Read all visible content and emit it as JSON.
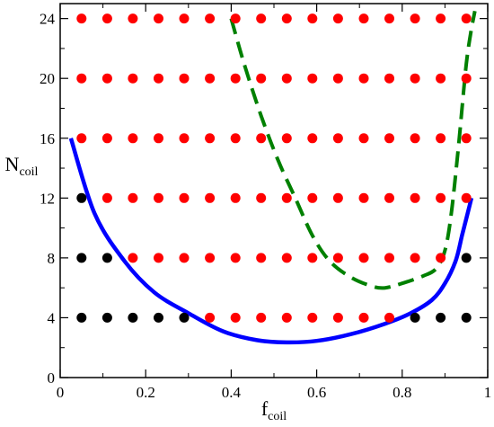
{
  "chart_data": {
    "type": "scatter",
    "xlabel": {
      "main": "f",
      "sub": "coil"
    },
    "ylabel": {
      "main": "N",
      "sub": "coil"
    },
    "xlim": [
      0,
      1
    ],
    "ylim": [
      0,
      25
    ],
    "xticks": [
      "0",
      "0.2",
      "0.4",
      "0.6",
      "0.8",
      "1"
    ],
    "xtick_values": [
      0,
      0.2,
      0.4,
      0.6,
      0.8,
      1
    ],
    "yticks": [
      "0",
      "4",
      "8",
      "12",
      "16",
      "20",
      "24"
    ],
    "ytick_values": [
      0,
      4,
      8,
      12,
      16,
      20,
      24
    ],
    "grid": false,
    "legend": "none",
    "colors": {
      "red": "#ff0000",
      "black": "#000000",
      "blue": "#0000ff",
      "green": "#008000"
    },
    "series": [
      {
        "color": "red",
        "points": [
          [
            0.05,
            24
          ],
          [
            0.11,
            24
          ],
          [
            0.17,
            24
          ],
          [
            0.23,
            24
          ],
          [
            0.29,
            24
          ],
          [
            0.35,
            24
          ],
          [
            0.41,
            24
          ],
          [
            0.47,
            24
          ],
          [
            0.53,
            24
          ],
          [
            0.59,
            24
          ],
          [
            0.65,
            24
          ],
          [
            0.71,
            24
          ],
          [
            0.77,
            24
          ],
          [
            0.83,
            24
          ],
          [
            0.89,
            24
          ],
          [
            0.95,
            24
          ],
          [
            0.05,
            20
          ],
          [
            0.11,
            20
          ],
          [
            0.17,
            20
          ],
          [
            0.23,
            20
          ],
          [
            0.29,
            20
          ],
          [
            0.35,
            20
          ],
          [
            0.41,
            20
          ],
          [
            0.47,
            20
          ],
          [
            0.53,
            20
          ],
          [
            0.59,
            20
          ],
          [
            0.65,
            20
          ],
          [
            0.71,
            20
          ],
          [
            0.77,
            20
          ],
          [
            0.83,
            20
          ],
          [
            0.89,
            20
          ],
          [
            0.95,
            20
          ],
          [
            0.05,
            16
          ],
          [
            0.11,
            16
          ],
          [
            0.17,
            16
          ],
          [
            0.23,
            16
          ],
          [
            0.29,
            16
          ],
          [
            0.35,
            16
          ],
          [
            0.41,
            16
          ],
          [
            0.47,
            16
          ],
          [
            0.53,
            16
          ],
          [
            0.59,
            16
          ],
          [
            0.65,
            16
          ],
          [
            0.71,
            16
          ],
          [
            0.77,
            16
          ],
          [
            0.83,
            16
          ],
          [
            0.89,
            16
          ],
          [
            0.95,
            16
          ],
          [
            0.11,
            12
          ],
          [
            0.17,
            12
          ],
          [
            0.23,
            12
          ],
          [
            0.29,
            12
          ],
          [
            0.35,
            12
          ],
          [
            0.41,
            12
          ],
          [
            0.47,
            12
          ],
          [
            0.53,
            12
          ],
          [
            0.59,
            12
          ],
          [
            0.65,
            12
          ],
          [
            0.71,
            12
          ],
          [
            0.77,
            12
          ],
          [
            0.83,
            12
          ],
          [
            0.89,
            12
          ],
          [
            0.95,
            12
          ],
          [
            0.17,
            8
          ],
          [
            0.23,
            8
          ],
          [
            0.29,
            8
          ],
          [
            0.35,
            8
          ],
          [
            0.41,
            8
          ],
          [
            0.47,
            8
          ],
          [
            0.53,
            8
          ],
          [
            0.59,
            8
          ],
          [
            0.65,
            8
          ],
          [
            0.71,
            8
          ],
          [
            0.77,
            8
          ],
          [
            0.83,
            8
          ],
          [
            0.89,
            8
          ],
          [
            0.35,
            4
          ],
          [
            0.41,
            4
          ],
          [
            0.47,
            4
          ],
          [
            0.53,
            4
          ],
          [
            0.59,
            4
          ],
          [
            0.65,
            4
          ],
          [
            0.71,
            4
          ],
          [
            0.77,
            4
          ]
        ]
      },
      {
        "color": "black",
        "points": [
          [
            0.05,
            12
          ],
          [
            0.05,
            8
          ],
          [
            0.11,
            8
          ],
          [
            0.95,
            8
          ],
          [
            0.05,
            4
          ],
          [
            0.11,
            4
          ],
          [
            0.17,
            4
          ],
          [
            0.23,
            4
          ],
          [
            0.29,
            4
          ],
          [
            0.83,
            4
          ],
          [
            0.89,
            4
          ],
          [
            0.95,
            4
          ]
        ]
      }
    ],
    "curves": [
      {
        "color": "blue",
        "style": "solid",
        "points": [
          [
            0.025,
            16
          ],
          [
            0.08,
            11
          ],
          [
            0.15,
            7.8
          ],
          [
            0.22,
            5.7
          ],
          [
            0.3,
            4.3
          ],
          [
            0.38,
            3.1
          ],
          [
            0.46,
            2.5
          ],
          [
            0.53,
            2.35
          ],
          [
            0.6,
            2.45
          ],
          [
            0.68,
            2.9
          ],
          [
            0.76,
            3.6
          ],
          [
            0.82,
            4.3
          ],
          [
            0.87,
            5.2
          ],
          [
            0.9,
            6.3
          ],
          [
            0.925,
            7.8
          ],
          [
            0.94,
            9.5
          ],
          [
            0.955,
            11.2
          ],
          [
            0.962,
            12
          ]
        ]
      },
      {
        "color": "green",
        "style": "dashed",
        "points": [
          [
            0.4,
            24
          ],
          [
            0.43,
            21
          ],
          [
            0.47,
            17.5
          ],
          [
            0.51,
            14.5
          ],
          [
            0.55,
            12
          ],
          [
            0.59,
            9.5
          ],
          [
            0.63,
            7.8
          ],
          [
            0.68,
            6.7
          ],
          [
            0.73,
            6.1
          ],
          [
            0.76,
            6
          ],
          [
            0.8,
            6.3
          ],
          [
            0.85,
            6.8
          ],
          [
            0.88,
            7.3
          ],
          [
            0.9,
            8.5
          ],
          [
            0.915,
            11
          ],
          [
            0.93,
            15
          ],
          [
            0.94,
            18
          ],
          [
            0.95,
            21
          ],
          [
            0.96,
            23
          ],
          [
            0.97,
            24.5
          ]
        ]
      }
    ]
  }
}
